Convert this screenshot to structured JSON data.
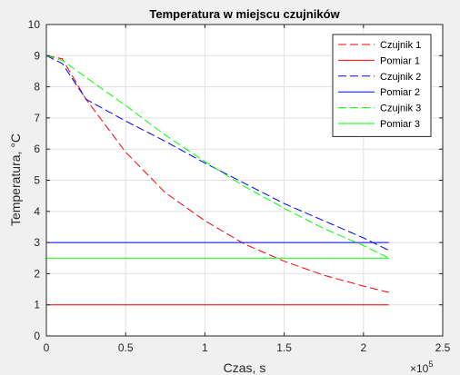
{
  "chart_data": {
    "type": "line",
    "title": "Temperatura w miejscu czujników",
    "xlabel": "Czas, s",
    "ylabel": "Temperatura, °C",
    "x_multiplier_base": "×10",
    "x_multiplier_exp": "5",
    "xlim": [
      0,
      2.5
    ],
    "ylim": [
      0,
      10
    ],
    "xticks": [
      0,
      0.5,
      1,
      1.5,
      2,
      2.5
    ],
    "yticks": [
      0,
      1,
      2,
      3,
      4,
      5,
      6,
      7,
      8,
      9,
      10
    ],
    "xtick_labels": [
      "0",
      "0.5",
      "1",
      "1.5",
      "2",
      "2.5"
    ],
    "ytick_labels": [
      "0",
      "1",
      "2",
      "3",
      "4",
      "5",
      "6",
      "7",
      "8",
      "9",
      "10"
    ],
    "grid": true,
    "legend_position": "top-right",
    "series": [
      {
        "name": "Czujnik 1",
        "color": "#ff0000",
        "dashed": true,
        "x": [
          0,
          0.1,
          0.25,
          0.5,
          0.75,
          1.0,
          1.25,
          1.5,
          1.75,
          2.0,
          2.16
        ],
        "y": [
          9,
          8.9,
          7.6,
          5.9,
          4.6,
          3.7,
          2.95,
          2.4,
          1.95,
          1.6,
          1.4
        ]
      },
      {
        "name": "Pomiar 1",
        "color": "#ff0000",
        "dashed": false,
        "x": [
          0,
          2.16
        ],
        "y": [
          1,
          1
        ]
      },
      {
        "name": "Czujnik 2",
        "color": "#0000ff",
        "dashed": true,
        "x": [
          0,
          0.1,
          0.25,
          0.5,
          0.75,
          1.0,
          1.25,
          1.5,
          1.75,
          2.0,
          2.16
        ],
        "y": [
          9,
          8.75,
          7.6,
          6.9,
          6.25,
          5.55,
          4.9,
          4.25,
          3.7,
          3.15,
          2.75
        ]
      },
      {
        "name": "Pomiar 2",
        "color": "#0000ff",
        "dashed": false,
        "x": [
          0,
          2.16
        ],
        "y": [
          3,
          3
        ]
      },
      {
        "name": "Czujnik 3",
        "color": "#00ff00",
        "dashed": true,
        "x": [
          0,
          0.1,
          0.25,
          0.5,
          0.75,
          1.0,
          1.25,
          1.5,
          1.75,
          2.0,
          2.16
        ],
        "y": [
          9,
          8.85,
          8.3,
          7.4,
          6.45,
          5.6,
          4.8,
          4.1,
          3.45,
          2.9,
          2.5
        ]
      },
      {
        "name": "Pomiar 3",
        "color": "#00ff00",
        "dashed": false,
        "x": [
          0,
          2.16
        ],
        "y": [
          2.5,
          2.5
        ]
      }
    ]
  }
}
